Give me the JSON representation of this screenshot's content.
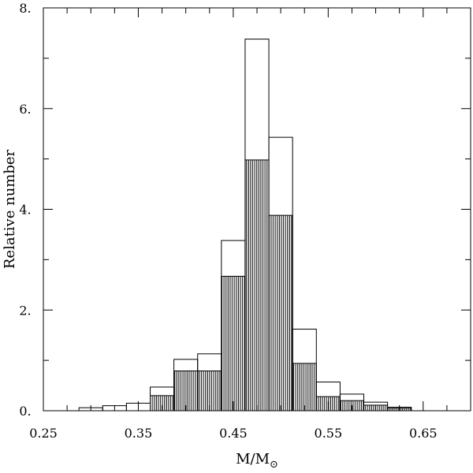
{
  "chart_data": {
    "type": "bar",
    "title": "",
    "xlabel": "M/M",
    "xlabel_subscript": "⊙",
    "ylabel": "Relative number",
    "xlim": [
      0.25,
      0.7
    ],
    "ylim": [
      0,
      8
    ],
    "bin_width": 0.025,
    "x_ticks": [
      {
        "value": 0.25,
        "label": "0.25"
      },
      {
        "value": 0.35,
        "label": "0.35"
      },
      {
        "value": 0.45,
        "label": "0.45"
      },
      {
        "value": 0.55,
        "label": "0.55"
      },
      {
        "value": 0.65,
        "label": "0.65"
      }
    ],
    "y_ticks": [
      {
        "value": 0,
        "label": "0."
      },
      {
        "value": 2,
        "label": "2."
      },
      {
        "value": 4,
        "label": "4."
      },
      {
        "value": 6,
        "label": "6."
      },
      {
        "value": 8,
        "label": "8."
      }
    ],
    "bin_starts": [
      0.2875,
      0.3125,
      0.3375,
      0.3625,
      0.3875,
      0.4125,
      0.4375,
      0.4625,
      0.4875,
      0.5125,
      0.5375,
      0.5625,
      0.5875,
      0.6125
    ],
    "series": [
      {
        "style": "open",
        "values": [
          0.06,
          0.1,
          0.15,
          0.47,
          1.02,
          1.13,
          3.38,
          7.38,
          5.43,
          1.62,
          0.57,
          0.33,
          0.17,
          0.07
        ]
      },
      {
        "style": "hatched",
        "values": [
          0,
          0,
          0,
          0.3,
          0.79,
          0.79,
          2.67,
          4.98,
          3.88,
          0.94,
          0.28,
          0.2,
          0.11,
          0.05
        ]
      }
    ]
  }
}
